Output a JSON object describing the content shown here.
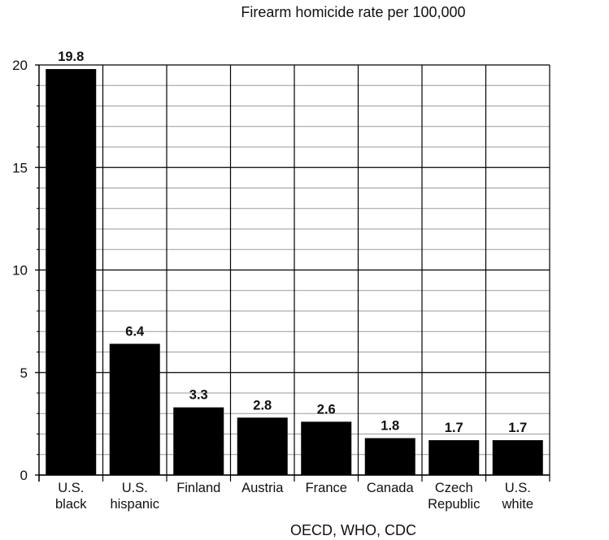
{
  "chart_data": {
    "type": "bar",
    "title": "Firearm homicide rate per 100,000",
    "source": "OECD, WHO, CDC",
    "categories": [
      [
        "U.S.",
        "black"
      ],
      [
        "U.S.",
        "hispanic"
      ],
      [
        "Finland"
      ],
      [
        "Austria"
      ],
      [
        "France"
      ],
      [
        "Canada"
      ],
      [
        "Czech",
        "Republic"
      ],
      [
        "U.S.",
        "white"
      ]
    ],
    "values": [
      19.8,
      6.4,
      3.3,
      2.8,
      2.6,
      1.8,
      1.7,
      1.7
    ],
    "value_labels": [
      "19.8",
      "6.4",
      "3.3",
      "2.8",
      "2.6",
      "1.8",
      "1.7",
      "1.7"
    ],
    "ylim": [
      0,
      20
    ],
    "yticks": [
      0,
      5,
      10,
      15,
      20
    ],
    "minor_step": 1,
    "grid": true,
    "bar_color": "#000000",
    "grid_color": "#000000",
    "minor_grid_color": "#9a9a9a"
  }
}
